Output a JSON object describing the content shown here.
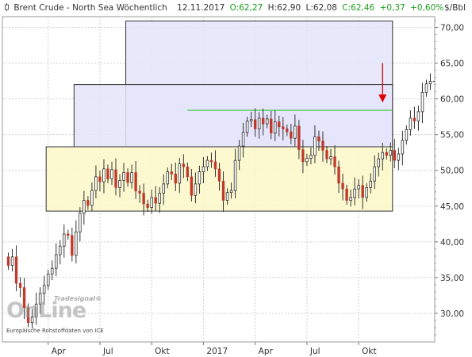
{
  "header": {
    "instrument": "Brent Crude - North Sea Wöchentlich",
    "date": "12.11.2017",
    "open_label": "O:62,27",
    "high_label": "H:62,90",
    "low_label": "L:62,08",
    "close_label": "C:62,46",
    "change": "+0,37",
    "change_pct": "+0,60%",
    "unit": "$/Bbl"
  },
  "watermark": {
    "brand": "OnLine",
    "tag": "Tradesignal®"
  },
  "source_note": "Europäische Rohstoffdaten von ICE",
  "colors": {
    "up_candle": "#2d8a2d",
    "down_candle": "#c0392b",
    "upper_zone": "#e4e4fa",
    "lower_zone": "#fbf8c8",
    "green_line": "#2fc62f",
    "arrow": "#e00000",
    "change_text": "#1a9e1a"
  },
  "chart_data": {
    "type": "candlestick",
    "title": "Brent Crude - North Sea Wöchentlich",
    "ylabel": "$/Bbl",
    "ylim": [
      26.0,
      71.5
    ],
    "yticks": [
      "30,00",
      "35,00",
      "40,00",
      "45,00",
      "50,00",
      "55,00",
      "60,00",
      "65,00",
      "70,00"
    ],
    "ytick_values": [
      30,
      35,
      40,
      45,
      50,
      55,
      60,
      65,
      70
    ],
    "xticks": [
      "Apr",
      "Jul",
      "Okt",
      "2017",
      "Apr",
      "Jul",
      "Okt"
    ],
    "grid": true,
    "zones": [
      {
        "from_week": 30,
        "to_week": 999,
        "low": 53.3,
        "high": 70.9
      },
      {
        "from_week": 17,
        "to_week": 999,
        "low": 53.3,
        "high": 62.0
      },
      {
        "from_week": 10,
        "to_week": 999,
        "low": 44.3,
        "high": 53.3
      }
    ],
    "hline": {
      "from_week": 45,
      "value": 58.4
    },
    "arrow": {
      "week": 94,
      "from": 65.0,
      "to": 59.5
    },
    "closes": [
      36.7,
      37.9,
      34.2,
      33.6,
      30.8,
      28.7,
      29.5,
      31.3,
      32.8,
      33.9,
      35.5,
      36.3,
      38.2,
      39.4,
      41.1,
      40.9,
      38.1,
      41.4,
      44.0,
      45.8,
      45.1,
      47.2,
      49.1,
      48.4,
      50.2,
      48.8,
      50.1,
      47.6,
      48.6,
      49.7,
      48.3,
      49.7,
      47.1,
      46.8,
      45.3,
      44.8,
      46.2,
      45.4,
      46.8,
      48.1,
      49.8,
      49.5,
      48.2,
      50.9,
      50.5,
      49.1,
      46.5,
      48.1,
      49.8,
      50.5,
      51.4,
      51.2,
      50.2,
      48.5,
      45.8,
      46.9,
      47.2,
      51.4,
      53.4,
      55.3,
      56.9,
      57.1,
      55.8,
      57.3,
      56.5,
      57.2,
      55.2,
      56.8,
      56.1,
      55.8,
      55.4,
      54.5,
      56.2,
      52.9,
      51.2,
      51.7,
      52.1,
      54.7,
      54.1,
      52.8,
      51.6,
      51.9,
      50.5,
      48.2,
      47.4,
      45.8,
      46.2,
      47.4,
      47.9,
      46.2,
      47.6,
      48.5,
      50.5,
      51.6,
      52.5,
      52.1,
      52.8,
      51.4,
      52.3,
      54.2,
      55.7,
      57.3,
      56.9,
      58.2,
      60.9,
      62.1,
      62.46
    ]
  }
}
